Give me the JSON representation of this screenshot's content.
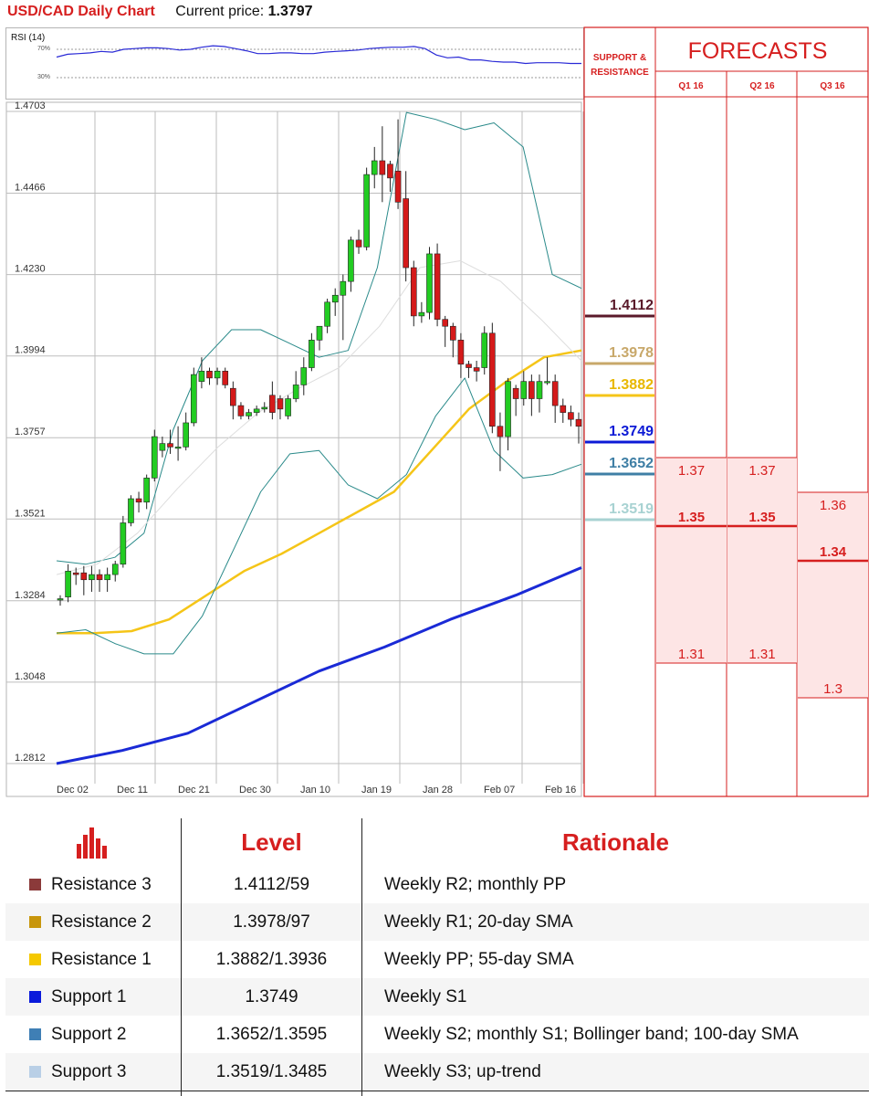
{
  "header": {
    "title": "USD/CAD Daily Chart",
    "price_label": "Current price:",
    "price_value": "1.3797"
  },
  "rsi": {
    "label": "RSI (14)",
    "upper": "70%",
    "lower": "30%",
    "values": [
      59,
      63,
      64,
      65,
      67,
      66,
      70,
      71,
      72,
      72,
      71,
      69,
      70,
      73,
      75,
      74,
      71,
      68,
      64,
      64,
      65,
      65,
      64,
      64,
      66,
      67,
      68,
      69,
      71,
      72,
      73,
      73,
      74,
      71,
      62,
      58,
      59,
      55,
      55,
      53,
      52,
      52,
      50,
      51,
      51,
      51,
      50,
      50
    ]
  },
  "chart_data": {
    "type": "candlestick",
    "title": "USD/CAD Daily Chart",
    "y_ticks": [
      "1.4703",
      "1.4466",
      "1.4230",
      "1.3994",
      "1.3757",
      "1.3521",
      "1.3284",
      "1.3048",
      "1.2812"
    ],
    "x_ticks": [
      "Dec 02",
      "Dec 11",
      "Dec 21",
      "Dec 30",
      "Jan 10",
      "Jan 19",
      "Jan 28",
      "Feb 07",
      "Feb 16"
    ],
    "ylim": [
      1.2812,
      1.4703
    ],
    "candles": [
      {
        "o": 1.329,
        "h": 1.33,
        "l": 1.327,
        "c": 1.329
      },
      {
        "o": 1.3295,
        "h": 1.339,
        "l": 1.328,
        "c": 1.337
      },
      {
        "o": 1.3365,
        "h": 1.338,
        "l": 1.333,
        "c": 1.336
      },
      {
        "o": 1.3365,
        "h": 1.3385,
        "l": 1.33,
        "c": 1.3345
      },
      {
        "o": 1.3345,
        "h": 1.3385,
        "l": 1.331,
        "c": 1.336
      },
      {
        "o": 1.336,
        "h": 1.3375,
        "l": 1.331,
        "c": 1.3345
      },
      {
        "o": 1.3345,
        "h": 1.338,
        "l": 1.331,
        "c": 1.336
      },
      {
        "o": 1.336,
        "h": 1.34,
        "l": 1.334,
        "c": 1.339
      },
      {
        "o": 1.339,
        "h": 1.353,
        "l": 1.338,
        "c": 1.351
      },
      {
        "o": 1.351,
        "h": 1.359,
        "l": 1.35,
        "c": 1.358
      },
      {
        "o": 1.358,
        "h": 1.36,
        "l": 1.354,
        "c": 1.357
      },
      {
        "o": 1.357,
        "h": 1.365,
        "l": 1.355,
        "c": 1.364
      },
      {
        "o": 1.364,
        "h": 1.378,
        "l": 1.363,
        "c": 1.376
      },
      {
        "o": 1.372,
        "h": 1.376,
        "l": 1.37,
        "c": 1.374
      },
      {
        "o": 1.374,
        "h": 1.378,
        "l": 1.371,
        "c": 1.373
      },
      {
        "o": 1.373,
        "h": 1.379,
        "l": 1.369,
        "c": 1.373
      },
      {
        "o": 1.373,
        "h": 1.383,
        "l": 1.372,
        "c": 1.38
      },
      {
        "o": 1.38,
        "h": 1.396,
        "l": 1.379,
        "c": 1.394
      },
      {
        "o": 1.392,
        "h": 1.399,
        "l": 1.39,
        "c": 1.395
      },
      {
        "o": 1.395,
        "h": 1.396,
        "l": 1.391,
        "c": 1.393
      },
      {
        "o": 1.393,
        "h": 1.396,
        "l": 1.391,
        "c": 1.395
      },
      {
        "o": 1.395,
        "h": 1.396,
        "l": 1.39,
        "c": 1.391
      },
      {
        "o": 1.39,
        "h": 1.392,
        "l": 1.381,
        "c": 1.385
      },
      {
        "o": 1.385,
        "h": 1.386,
        "l": 1.381,
        "c": 1.382
      },
      {
        "o": 1.382,
        "h": 1.384,
        "l": 1.381,
        "c": 1.383
      },
      {
        "o": 1.383,
        "h": 1.385,
        "l": 1.382,
        "c": 1.384
      },
      {
        "o": 1.384,
        "h": 1.386,
        "l": 1.383,
        "c": 1.3845
      },
      {
        "o": 1.388,
        "h": 1.392,
        "l": 1.381,
        "c": 1.383
      },
      {
        "o": 1.387,
        "h": 1.388,
        "l": 1.381,
        "c": 1.384
      },
      {
        "o": 1.382,
        "h": 1.388,
        "l": 1.381,
        "c": 1.387
      },
      {
        "o": 1.387,
        "h": 1.395,
        "l": 1.386,
        "c": 1.391
      },
      {
        "o": 1.391,
        "h": 1.399,
        "l": 1.388,
        "c": 1.396
      },
      {
        "o": 1.396,
        "h": 1.406,
        "l": 1.395,
        "c": 1.404
      },
      {
        "o": 1.404,
        "h": 1.407,
        "l": 1.401,
        "c": 1.408
      },
      {
        "o": 1.408,
        "h": 1.416,
        "l": 1.406,
        "c": 1.415
      },
      {
        "o": 1.415,
        "h": 1.419,
        "l": 1.411,
        "c": 1.417
      },
      {
        "o": 1.417,
        "h": 1.423,
        "l": 1.404,
        "c": 1.421
      },
      {
        "o": 1.421,
        "h": 1.434,
        "l": 1.418,
        "c": 1.433
      },
      {
        "o": 1.433,
        "h": 1.436,
        "l": 1.429,
        "c": 1.431
      },
      {
        "o": 1.431,
        "h": 1.454,
        "l": 1.43,
        "c": 1.452
      },
      {
        "o": 1.452,
        "h": 1.46,
        "l": 1.448,
        "c": 1.456
      },
      {
        "o": 1.456,
        "h": 1.466,
        "l": 1.444,
        "c": 1.452
      },
      {
        "o": 1.455,
        "h": 1.456,
        "l": 1.447,
        "c": 1.451
      },
      {
        "o": 1.453,
        "h": 1.468,
        "l": 1.442,
        "c": 1.444
      },
      {
        "o": 1.445,
        "h": 1.453,
        "l": 1.421,
        "c": 1.425
      },
      {
        "o": 1.425,
        "h": 1.427,
        "l": 1.408,
        "c": 1.411
      },
      {
        "o": 1.411,
        "h": 1.415,
        "l": 1.409,
        "c": 1.412
      },
      {
        "o": 1.412,
        "h": 1.431,
        "l": 1.41,
        "c": 1.429
      },
      {
        "o": 1.429,
        "h": 1.432,
        "l": 1.408,
        "c": 1.41
      },
      {
        "o": 1.41,
        "h": 1.411,
        "l": 1.402,
        "c": 1.408
      },
      {
        "o": 1.408,
        "h": 1.409,
        "l": 1.399,
        "c": 1.404
      },
      {
        "o": 1.404,
        "h": 1.406,
        "l": 1.393,
        "c": 1.397
      },
      {
        "o": 1.397,
        "h": 1.398,
        "l": 1.393,
        "c": 1.396
      },
      {
        "o": 1.396,
        "h": 1.398,
        "l": 1.392,
        "c": 1.395
      },
      {
        "o": 1.396,
        "h": 1.408,
        "l": 1.394,
        "c": 1.406
      },
      {
        "o": 1.406,
        "h": 1.409,
        "l": 1.377,
        "c": 1.379
      },
      {
        "o": 1.379,
        "h": 1.383,
        "l": 1.366,
        "c": 1.376
      },
      {
        "o": 1.376,
        "h": 1.393,
        "l": 1.372,
        "c": 1.392
      },
      {
        "o": 1.39,
        "h": 1.391,
        "l": 1.382,
        "c": 1.387
      },
      {
        "o": 1.387,
        "h": 1.395,
        "l": 1.385,
        "c": 1.392
      },
      {
        "o": 1.392,
        "h": 1.394,
        "l": 1.382,
        "c": 1.387
      },
      {
        "o": 1.387,
        "h": 1.394,
        "l": 1.383,
        "c": 1.392
      },
      {
        "o": 1.392,
        "h": 1.399,
        "l": 1.391,
        "c": 1.392
      },
      {
        "o": 1.392,
        "h": 1.394,
        "l": 1.38,
        "c": 1.385
      },
      {
        "o": 1.385,
        "h": 1.387,
        "l": 1.38,
        "c": 1.383
      },
      {
        "o": 1.383,
        "h": 1.385,
        "l": 1.379,
        "c": 1.381
      },
      {
        "o": 1.381,
        "h": 1.383,
        "l": 1.374,
        "c": 1.379
      }
    ],
    "indicators": [
      {
        "type": "sma",
        "color": "#f5c518",
        "points": [
          1.319,
          1.319,
          1.3196,
          1.323,
          1.33,
          1.337,
          1.342,
          1.348,
          1.354,
          1.36,
          1.372,
          1.384,
          1.392,
          1.399,
          1.401
        ]
      },
      {
        "type": "sma",
        "color": "#1a2ad6",
        "points": [
          1.2812,
          1.285,
          1.29,
          1.299,
          1.308,
          1.315,
          1.323,
          1.33,
          1.338
        ]
      },
      {
        "type": "bollinger_upper",
        "color": "#2a8a8a",
        "points": [
          1.34,
          1.339,
          1.341,
          1.348,
          1.378,
          1.398,
          1.407,
          1.407,
          1.403,
          1.399,
          1.401,
          1.425,
          1.47,
          1.468,
          1.465,
          1.467,
          1.46,
          1.423,
          1.419
        ]
      },
      {
        "type": "bollinger_lower",
        "color": "#2a8a8a",
        "points": [
          1.319,
          1.32,
          1.316,
          1.313,
          1.313,
          1.324,
          1.342,
          1.36,
          1.371,
          1.372,
          1.362,
          1.358,
          1.365,
          1.382,
          1.393,
          1.372,
          1.364,
          1.365,
          1.368
        ]
      },
      {
        "type": "sma",
        "color": "#dddddd",
        "points": [
          1.336,
          1.339,
          1.348,
          1.361,
          1.373,
          1.383,
          1.39,
          1.396,
          1.408,
          1.425,
          1.427,
          1.421,
          1.41,
          1.398
        ]
      }
    ]
  },
  "levels": [
    {
      "value": "1.4112",
      "color": "#5a1a2a",
      "text_color": "#5a1a2a"
    },
    {
      "value": "1.3978",
      "color": "#c8a86a",
      "text_color": "#c8a86a"
    },
    {
      "value": "1.3882",
      "color": "#f5c518",
      "text_color": "#e8b800"
    },
    {
      "value": "1.3749",
      "color": "#0c1ad6",
      "text_color": "#0c1ad6"
    },
    {
      "value": "1.3652",
      "color": "#3f7fa5",
      "text_color": "#3f7fa5"
    },
    {
      "value": "1.3519",
      "color": "#a8d2d2",
      "text_color": "#a8d2d2"
    }
  ],
  "forecast_panel": {
    "support_label": "SUPPORT & RESISTANCE",
    "title": "FORECASTS",
    "quarters": [
      "Q1 16",
      "Q2 16",
      "Q3 16"
    ],
    "columns": [
      {
        "high": "1.37",
        "mid": "1.35",
        "low": "1.31"
      },
      {
        "high": "1.37",
        "mid": "1.35",
        "low": "1.31"
      },
      {
        "high": "1.36",
        "mid": "1.34",
        "low": "1.3"
      }
    ]
  },
  "table": {
    "header_level": "Level",
    "header_rationale": "Rationale",
    "rows": [
      {
        "name": "Resistance 3",
        "level": "1.4112/59",
        "rationale": "Weekly R2; monthly PP",
        "color": "#8b3a3a"
      },
      {
        "name": "Resistance 2",
        "level": "1.3978/97",
        "rationale": "Weekly R1; 20-day SMA",
        "color": "#c8960c"
      },
      {
        "name": "Resistance 1",
        "level": "1.3882/1.3936",
        "rationale": "Weekly PP; 55-day SMA",
        "color": "#f5c800"
      },
      {
        "name": "Support 1",
        "level": "1.3749",
        "rationale": "Weekly S1",
        "color": "#0a1adb"
      },
      {
        "name": "Support 2",
        "level": "1.3652/1.3595",
        "rationale": "Weekly S2; monthly S1; Bollinger band; 100-day SMA",
        "color": "#3f7fb5"
      },
      {
        "name": "Support 3",
        "level": "1.3519/1.3485",
        "rationale": "Weekly S3; up-trend",
        "color": "#b9cfe6"
      }
    ]
  }
}
